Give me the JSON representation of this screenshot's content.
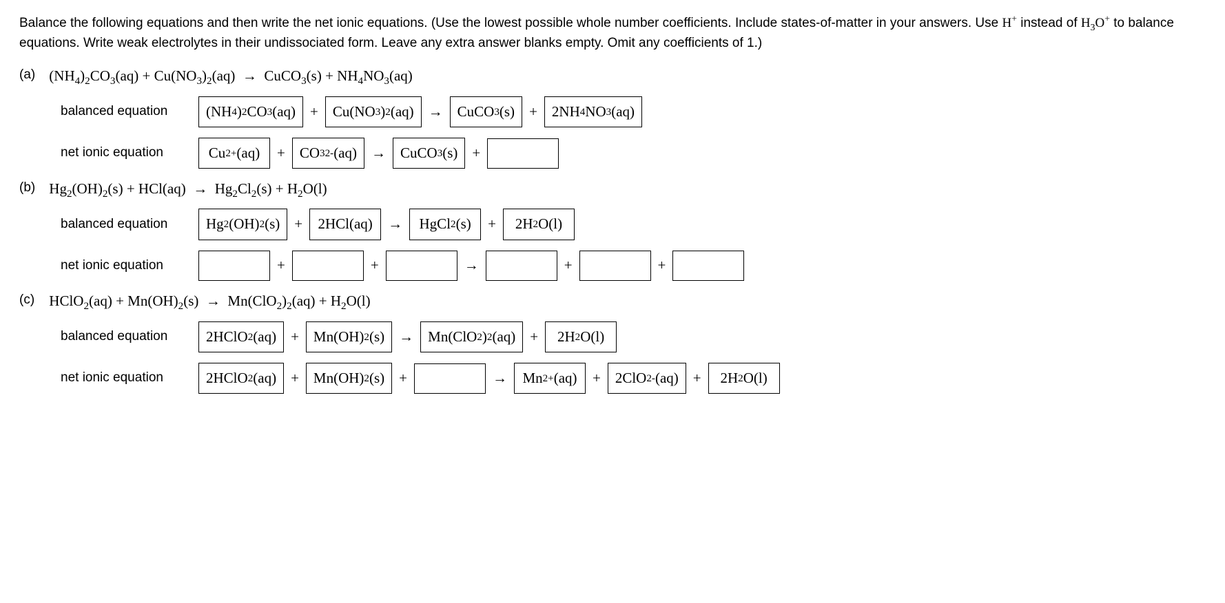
{
  "instructions": {
    "line1_pre": "Balance the following equations and then write the net ionic equations. (Use the lowest possible whole number coefficients. Include states-of-matter in your answers. Use ",
    "line1_mid": " instead of ",
    "line1_post": " to balance equations. Write weak electrolytes in their undissociated form. Leave any extra answer blanks empty. Omit any coefficients of 1.)"
  },
  "labels": {
    "balanced": "balanced equation",
    "net_ionic": "net ionic equation"
  },
  "parts": {
    "a": {
      "letter": "(a)",
      "balanced": {
        "r1": "(NH<sub>4</sub>)<sub>2</sub>CO<sub>3</sub>(aq)",
        "r2": "Cu(NO<sub>3</sub>)<sub>2</sub>(aq)",
        "p1": "CuCO<sub>3</sub>(s)",
        "p2": "2NH<sub>4</sub>NO<sub>3</sub>(aq)"
      },
      "net": {
        "r1": "Cu<sup>2+</sup>(aq)",
        "r2": "CO<sub>3</sub><sup>2-</sup>(aq)",
        "p1": "CuCO<sub>3</sub>(s)",
        "p2": ""
      }
    },
    "b": {
      "letter": "(b)",
      "balanced": {
        "r1": "Hg<sub>2</sub>(OH)<sub>2</sub>(s)",
        "r2": "2HCl(aq)",
        "p1": "HgCl<sub>2</sub>(s)",
        "p2": "2H<sub>2</sub>O(l)"
      },
      "net": {
        "r1": "",
        "r2": "",
        "r3": "",
        "p1": "",
        "p2": "",
        "p3": ""
      }
    },
    "c": {
      "letter": "(c)",
      "balanced": {
        "r1": "2HClO<sub>2</sub>(aq)",
        "r2": "Mn(OH)<sub>2</sub>(s)",
        "p1": "Mn(ClO<sub>2</sub>)<sub>2</sub>(aq)",
        "p2": "2H<sub>2</sub>O(l)"
      },
      "net": {
        "r1": "2HClO<sub>2</sub>(aq)",
        "r2": "Mn(OH)<sub>2</sub>(s)",
        "r3": "",
        "p1": "Mn<sup>2+</sup>(aq)",
        "p2": "2ClO<sub>2</sub><sup>-</sup>(aq)",
        "p3": "2H<sub>2</sub>O(l)"
      }
    }
  }
}
